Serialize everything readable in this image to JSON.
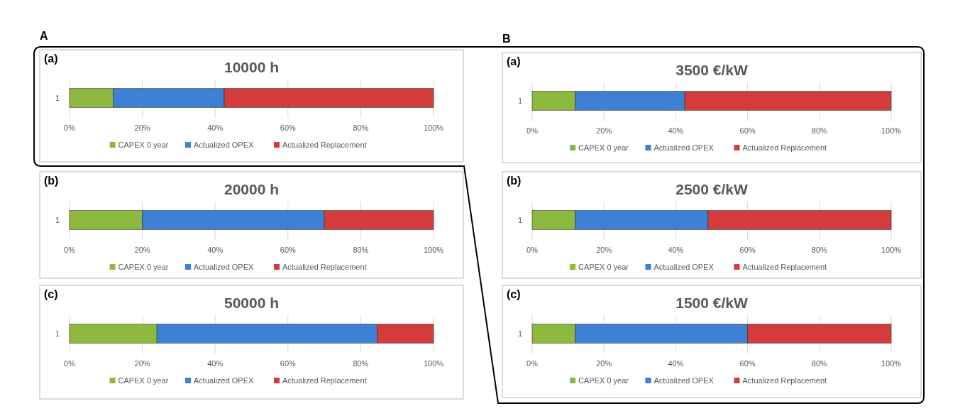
{
  "chart_data": [
    {
      "type": "bar",
      "orientation": "horizontal",
      "stacked": true,
      "title": "10000 h",
      "annotations": [
        "(a)",
        "A"
      ],
      "categories": [
        "1"
      ],
      "series": [
        {
          "name": "CAPEX 0 year",
          "color": "#8dba3e",
          "values": [
            12
          ]
        },
        {
          "name": "Actualized OPEX",
          "color": "#3d80d4",
          "values": [
            30.5
          ]
        },
        {
          "name": "Actualized Replacement",
          "color": "#d33c3a",
          "values": [
            57.5
          ]
        }
      ],
      "xlim": [
        0,
        100
      ],
      "xticks": [
        {
          "value": 0,
          "label": "0%"
        },
        {
          "value": 20,
          "label": "20%"
        },
        {
          "value": 40,
          "label": "40%"
        },
        {
          "value": 60,
          "label": "60%"
        },
        {
          "value": 80,
          "label": "80%"
        },
        {
          "value": 100,
          "label": "100%"
        }
      ],
      "grid": "x",
      "legend": "bottom"
    },
    {
      "type": "bar",
      "orientation": "horizontal",
      "stacked": true,
      "title": "20000 h",
      "annotations": [
        "(b)"
      ],
      "categories": [
        "1"
      ],
      "series": [
        {
          "name": "CAPEX 0 year",
          "color": "#8dba3e",
          "values": [
            20
          ]
        },
        {
          "name": "Actualized OPEX",
          "color": "#3d80d4",
          "values": [
            50
          ]
        },
        {
          "name": "Actualized Replacement",
          "color": "#d33c3a",
          "values": [
            30
          ]
        }
      ],
      "xlim": [
        0,
        100
      ],
      "xticks": [
        {
          "value": 0,
          "label": "0%"
        },
        {
          "value": 20,
          "label": "20%"
        },
        {
          "value": 40,
          "label": "40%"
        },
        {
          "value": 60,
          "label": "60%"
        },
        {
          "value": 80,
          "label": "80%"
        },
        {
          "value": 100,
          "label": "100%"
        }
      ],
      "grid": "x",
      "legend": "bottom"
    },
    {
      "type": "bar",
      "orientation": "horizontal",
      "stacked": true,
      "title": "50000 h",
      "annotations": [
        "(c)"
      ],
      "categories": [
        "1"
      ],
      "series": [
        {
          "name": "CAPEX 0 year",
          "color": "#8dba3e",
          "values": [
            24
          ]
        },
        {
          "name": "Actualized OPEX",
          "color": "#3d80d4",
          "values": [
            60.5
          ]
        },
        {
          "name": "Actualized Replacement",
          "color": "#d33c3a",
          "values": [
            15.5
          ]
        }
      ],
      "xlim": [
        0,
        100
      ],
      "xticks": [
        {
          "value": 0,
          "label": "0%"
        },
        {
          "value": 20,
          "label": "20%"
        },
        {
          "value": 40,
          "label": "40%"
        },
        {
          "value": 60,
          "label": "60%"
        },
        {
          "value": 80,
          "label": "80%"
        },
        {
          "value": 100,
          "label": "100%"
        }
      ],
      "grid": "x",
      "legend": "bottom"
    },
    {
      "type": "bar",
      "orientation": "horizontal",
      "stacked": true,
      "title": "3500 €/kW",
      "annotations": [
        "(a)",
        "B"
      ],
      "categories": [
        "1"
      ],
      "series": [
        {
          "name": "CAPEX 0 year",
          "color": "#8dba3e",
          "values": [
            12
          ]
        },
        {
          "name": "Actualized OPEX",
          "color": "#3d80d4",
          "values": [
            30.5
          ]
        },
        {
          "name": "Actualized Replacement",
          "color": "#d33c3a",
          "values": [
            57.5
          ]
        }
      ],
      "xlim": [
        0,
        100
      ],
      "xticks": [
        {
          "value": 0,
          "label": "0%"
        },
        {
          "value": 20,
          "label": "20%"
        },
        {
          "value": 40,
          "label": "40%"
        },
        {
          "value": 60,
          "label": "60%"
        },
        {
          "value": 80,
          "label": "80%"
        },
        {
          "value": 100,
          "label": "100%"
        }
      ],
      "grid": "x",
      "legend": "bottom"
    },
    {
      "type": "bar",
      "orientation": "horizontal",
      "stacked": true,
      "title": "2500 €/kW",
      "annotations": [
        "(b)"
      ],
      "categories": [
        "1"
      ],
      "series": [
        {
          "name": "CAPEX 0 year",
          "color": "#8dba3e",
          "values": [
            12
          ]
        },
        {
          "name": "Actualized OPEX",
          "color": "#3d80d4",
          "values": [
            37
          ]
        },
        {
          "name": "Actualized Replacement",
          "color": "#d33c3a",
          "values": [
            51
          ]
        }
      ],
      "xlim": [
        0,
        100
      ],
      "xticks": [
        {
          "value": 0,
          "label": "0%"
        },
        {
          "value": 20,
          "label": "20%"
        },
        {
          "value": 40,
          "label": "40%"
        },
        {
          "value": 60,
          "label": "60%"
        },
        {
          "value": 80,
          "label": "80%"
        },
        {
          "value": 100,
          "label": "100%"
        }
      ],
      "grid": "x",
      "legend": "bottom"
    },
    {
      "type": "bar",
      "orientation": "horizontal",
      "stacked": true,
      "title": "1500 €/kW",
      "annotations": [
        "(c)"
      ],
      "categories": [
        "1"
      ],
      "series": [
        {
          "name": "CAPEX 0 year",
          "color": "#8dba3e",
          "values": [
            12
          ]
        },
        {
          "name": "Actualized OPEX",
          "color": "#3d80d4",
          "values": [
            48
          ]
        },
        {
          "name": "Actualized Replacement",
          "color": "#d33c3a",
          "values": [
            40
          ]
        }
      ],
      "xlim": [
        0,
        100
      ],
      "xticks": [
        {
          "value": 0,
          "label": "0%"
        },
        {
          "value": 20,
          "label": "20%"
        },
        {
          "value": 40,
          "label": "40%"
        },
        {
          "value": 60,
          "label": "60%"
        },
        {
          "value": 80,
          "label": "80%"
        },
        {
          "value": 100,
          "label": "100%"
        }
      ],
      "grid": "x",
      "legend": "bottom"
    }
  ]
}
